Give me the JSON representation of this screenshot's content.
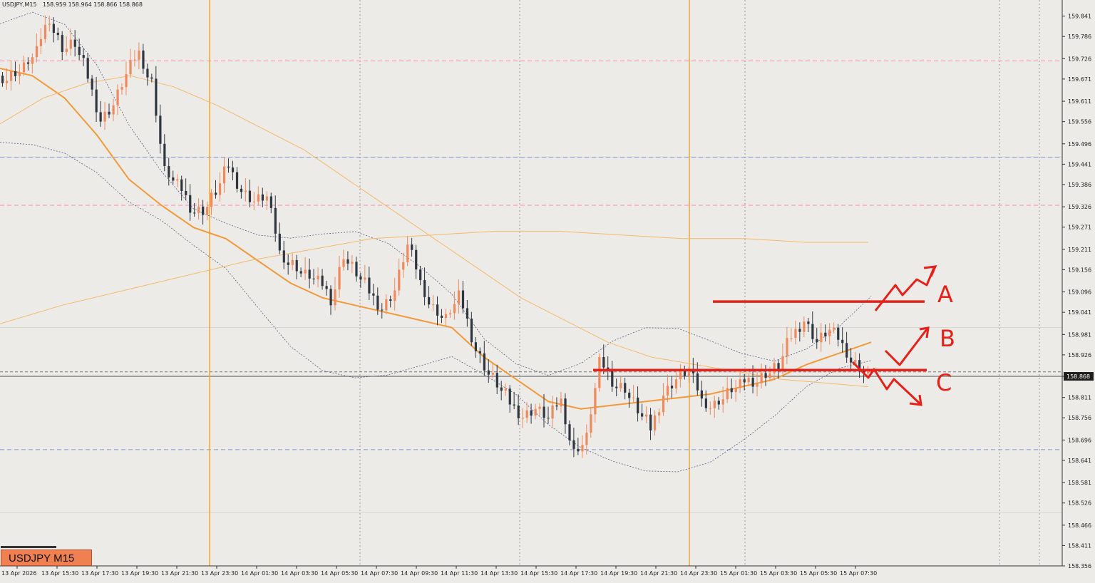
{
  "header": {
    "symbol": "USDJPY,M15",
    "quote": "158.959 158.964 158.866 158.868"
  },
  "badge": {
    "label": "USDJPY M15"
  },
  "colors": {
    "bg": "#ecebe7",
    "bull": "#f08a5d",
    "bear": "#2f3640",
    "ma_fast": "#f29a3a",
    "ma_slow": "#f6b86a",
    "band": "#5a5f8a",
    "annotation": "#e8201a",
    "session": "#f5a623",
    "res_dash": "#ff8aa8",
    "sup_dash": "#7f98d8"
  },
  "chart_data": {
    "type": "candlestick",
    "title": "",
    "ylim": [
      158.356,
      159.871
    ],
    "y_ticks": [
      "159.841",
      "159.786",
      "159.726",
      "159.671",
      "159.611",
      "159.556",
      "159.496",
      "159.441",
      "159.386",
      "159.326",
      "159.271",
      "159.211",
      "159.156",
      "159.096",
      "159.041",
      "158.981",
      "158.926",
      "158.868",
      "158.811",
      "158.756",
      "158.696",
      "158.641",
      "158.581",
      "158.526",
      "158.466",
      "158.411",
      "158.356"
    ],
    "current_price": "158.868",
    "x_ticks": [
      "13 Apr 2026",
      "13 Apr 15:30",
      "13 Apr 17:30",
      "13 Apr 19:30",
      "13 Apr 21:30",
      "13 Apr 23:30",
      "14 Apr 01:30",
      "14 Apr 03:30",
      "14 Apr 05:30",
      "14 Apr 07:30",
      "14 Apr 09:30",
      "14 Apr 11:30",
      "14 Apr 13:30",
      "14 Apr 15:30",
      "14 Apr 17:30",
      "14 Apr 19:30",
      "14 Apr 21:30",
      "14 Apr 23:30",
      "15 Apr 01:30",
      "15 Apr 03:30",
      "15 Apr 05:30",
      "15 Apr 07:30"
    ],
    "close_path": [
      159.68,
      159.7,
      159.74,
      159.84,
      159.76,
      159.77,
      159.68,
      159.56,
      159.6,
      159.68,
      159.74,
      159.66,
      159.42,
      159.38,
      159.33,
      159.32,
      159.37,
      159.44,
      159.37,
      159.34,
      159.35,
      159.2,
      159.17,
      159.14,
      159.12,
      159.08,
      159.2,
      159.15,
      159.1,
      159.05,
      159.1,
      159.22,
      159.12,
      159.05,
      159.02,
      159.08,
      158.98,
      158.9,
      158.85,
      158.8,
      158.76,
      158.78,
      158.75,
      158.8,
      158.66,
      158.7,
      158.9,
      158.86,
      158.84,
      158.78,
      158.73,
      158.82,
      158.86,
      158.88,
      158.8,
      158.79,
      158.82,
      158.84,
      158.86,
      158.88,
      158.9,
      158.98,
      159.02,
      158.96,
      158.99,
      158.95,
      158.9,
      158.87
    ],
    "series": [
      {
        "name": "",
        "values": [
          159.7,
          159.68,
          159.62,
          159.52,
          159.4,
          159.33,
          159.27,
          159.24,
          159.18,
          159.12,
          159.08,
          159.06,
          159.04,
          159.02,
          159.0,
          158.92,
          158.86,
          158.8,
          158.78,
          158.79,
          158.8,
          158.81,
          158.82,
          158.84,
          158.86,
          158.9,
          158.93,
          158.96
        ]
      },
      {
        "name": "",
        "values": [
          159.55,
          159.62,
          159.66,
          159.68,
          159.65,
          159.6,
          159.54,
          159.48,
          159.4,
          159.32,
          159.24,
          159.16,
          159.08,
          159.02,
          158.96,
          158.92,
          158.9,
          158.88,
          158.86,
          158.85,
          158.84
        ]
      },
      {
        "name": "",
        "values": [
          159.01,
          159.06,
          159.1,
          159.14,
          159.18,
          159.21,
          159.24,
          159.25,
          159.26,
          159.26,
          159.25,
          159.24,
          159.24,
          159.23,
          159.23
        ]
      }
    ],
    "hlines": [
      {
        "price": 159.72,
        "style": "res_dash"
      },
      {
        "price": 159.46,
        "style": "sup_dash"
      },
      {
        "price": 159.33,
        "style": "res_dash"
      },
      {
        "price": 158.67,
        "style": "sup_dash"
      },
      {
        "price": 158.88,
        "style": "grey_dash"
      }
    ],
    "annotations": {
      "level_a": 159.07,
      "level_c": 158.885,
      "labels": [
        "A",
        "B",
        "C"
      ]
    }
  }
}
